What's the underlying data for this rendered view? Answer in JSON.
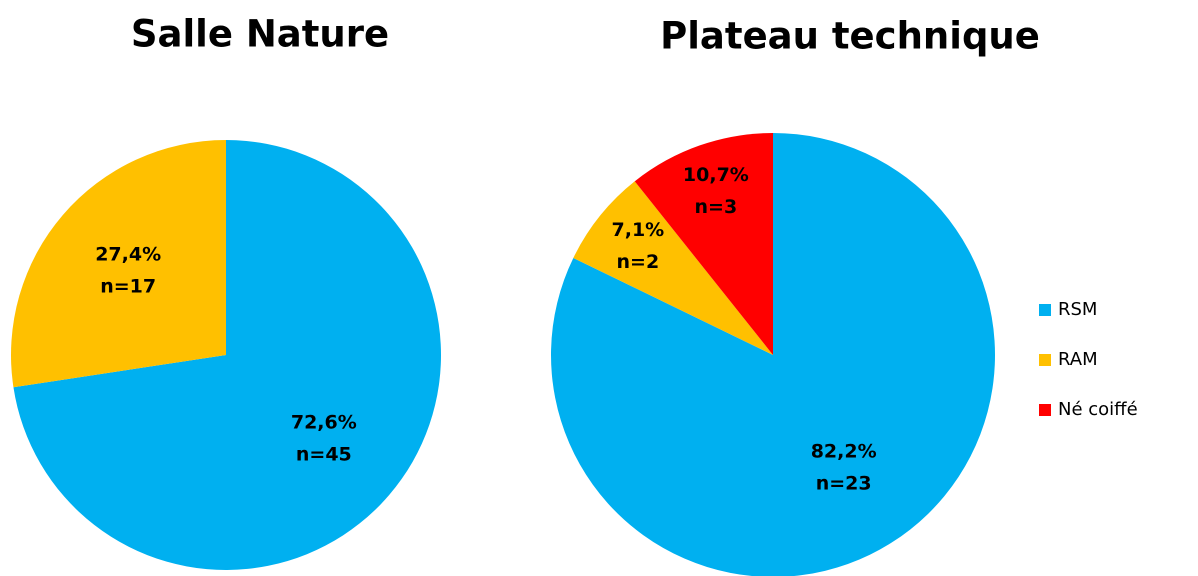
{
  "chart_data": [
    {
      "type": "pie",
      "title": "Salle Nature",
      "values": [
        72.6,
        27.4
      ],
      "value_labels": [
        "72,6%",
        "27,4%"
      ],
      "counts": [
        45,
        17
      ],
      "count_labels": [
        "n=45",
        "n=17"
      ]
    },
    {
      "type": "pie",
      "title": "Plateau technique",
      "values": [
        82.2,
        7.1,
        10.7
      ],
      "value_labels": [
        "82,2%",
        "7,1%",
        "10,7%"
      ],
      "counts": [
        23,
        2,
        3
      ],
      "count_labels": [
        "n=23",
        "n=2",
        "n=3"
      ]
    }
  ],
  "legend": {
    "position": "right",
    "names": [
      "RSM",
      "RAM",
      "Né coiffé"
    ],
    "colors": [
      "#00b0f0",
      "#ffc000",
      "#ff0000"
    ]
  }
}
